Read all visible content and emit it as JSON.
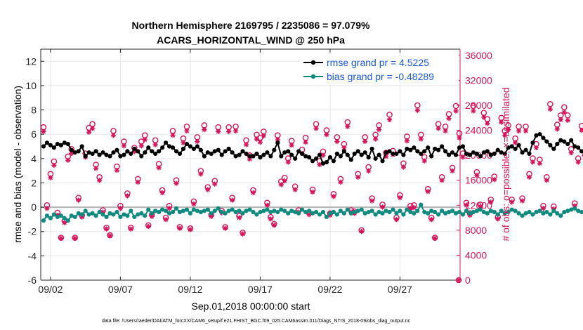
{
  "chart_data": {
    "type": "line",
    "title_line1": "Northern Hemisphere 2169795 / 2235086 = 97.079%",
    "title_line2": "ACARS_HORIZONTAL_WIND @ 250 hPa",
    "xlabel": "Sep.01,2018 00:00:00 start",
    "ylabel_left": "rmse and bias (model - observation)",
    "ylabel_right": "# of obs: o=possible; ×=assimilated",
    "footer": "data file: /Users/raeder/DAI/ATM_forcXX/CAM6_setup/f.e21.FHIST_BGC.f09_025.CAM6assim.011/Diags_NTrS_2018-09/obs_diag_output.nc",
    "xlim": [
      0.8,
      30.8
    ],
    "ylim_left": [
      -6,
      13
    ],
    "ylim_right": [
      0,
      37000
    ],
    "x_ticks": [
      1.5,
      6.5,
      11.5,
      16.5,
      21.5,
      26.5
    ],
    "x_tick_labels": [
      "09/02",
      "09/07",
      "09/12",
      "09/17",
      "09/22",
      "09/27"
    ],
    "y_ticks_left": [
      "-6",
      "-4",
      "-2",
      "0",
      "2",
      "4",
      "6",
      "8",
      "10",
      "12"
    ],
    "y_ticks_right": [
      "0",
      "4000",
      "8000",
      "12000",
      "16000",
      "20000",
      "24000",
      "28000",
      "32000",
      "36000"
    ],
    "y_tick_values_left": [
      -6,
      -4,
      -2,
      0,
      2,
      4,
      6,
      8,
      10,
      12
    ],
    "y_tick_values_right": [
      0,
      4000,
      8000,
      12000,
      16000,
      20000,
      24000,
      28000,
      32000,
      36000
    ],
    "zero_line": 0,
    "x_start": 1.0,
    "x_step": 0.25,
    "series": [
      {
        "name": "rmse grand pr = 4.5225",
        "color": "#000000",
        "axis": "left",
        "values": [
          5.0,
          5.3,
          5.1,
          4.9,
          5.2,
          5.1,
          5.3,
          5.2,
          4.7,
          4.5,
          4.6,
          5.0,
          4.2,
          4.5,
          4.4,
          4.6,
          4.3,
          4.5,
          4.3,
          4.2,
          4.5,
          4.7,
          4.2,
          4.3,
          4.6,
          4.4,
          4.8,
          4.6,
          4.2,
          4.5,
          4.9,
          4.6,
          4.4,
          4.6,
          4.9,
          5.3,
          5.0,
          4.9,
          4.6,
          4.4,
          4.8,
          5.2,
          5.0,
          4.8,
          5.0,
          4.7,
          4.2,
          4.5,
          4.4,
          4.6,
          4.7,
          4.3,
          4.6,
          4.8,
          4.5,
          4.2,
          4.3,
          4.6,
          4.4,
          4.2,
          4.2,
          4.4,
          4.1,
          4.3,
          4.5,
          4.2,
          4.7,
          5.3,
          4.2,
          4.5,
          4.6,
          4.3,
          4.0,
          4.6,
          4.4,
          4.2,
          4.1,
          3.8,
          4.0,
          4.3,
          3.6,
          3.7,
          4.1,
          3.8,
          4.4,
          4.2,
          4.6,
          4.3,
          3.9,
          4.4,
          4.6,
          4.3,
          4.5,
          4.1,
          4.8,
          4.0,
          4.3,
          3.8,
          4.5,
          4.6,
          4.4,
          4.4,
          4.6,
          4.3,
          4.8,
          4.7,
          4.9,
          4.6,
          4.4,
          4.6,
          4.9,
          4.2,
          4.8,
          4.7,
          5.0,
          4.6,
          4.3,
          4.5,
          4.3,
          4.9,
          5.0,
          4.4,
          4.3,
          4.5,
          4.4,
          4.2,
          4.5,
          4.6,
          4.3,
          4.4,
          4.7,
          4.5,
          4.4,
          4.9,
          5.0,
          4.8,
          5.1,
          4.5,
          4.7,
          4.4,
          5.3,
          5.9,
          6.0,
          5.7,
          5.4,
          5.1,
          4.8,
          5.2,
          5.5,
          5.4,
          5.2,
          5.5,
          5.0,
          4.9,
          4.6,
          4.7,
          4.9,
          4.2,
          4.8,
          4.6,
          4.4,
          5.2,
          4.6,
          4.1,
          4.0
        ]
      },
      {
        "name": "bias grand pr = -0.48289",
        "color": "#0f8a7e",
        "axis": "left",
        "values": [
          -1.1,
          -0.7,
          -0.9,
          -0.6,
          -0.8,
          -0.7,
          -0.9,
          -1.1,
          -0.7,
          -0.8,
          -0.5,
          -0.6,
          -0.3,
          -0.6,
          -0.5,
          -0.7,
          -0.4,
          -0.6,
          -0.8,
          -0.5,
          -0.6,
          -0.4,
          -0.8,
          -0.6,
          -0.7,
          -0.3,
          -0.8,
          -0.6,
          -0.5,
          -0.7,
          -0.2,
          -0.5,
          -0.3,
          -0.4,
          -0.2,
          -0.3,
          -0.5,
          -0.4,
          -0.1,
          -0.4,
          -0.3,
          -0.2,
          -0.5,
          -0.2,
          -0.3,
          -0.4,
          -0.3,
          -0.2,
          -0.5,
          -0.3,
          -0.1,
          -0.4,
          -0.5,
          -0.3,
          -0.2,
          -0.4,
          -0.3,
          -0.5,
          -0.3,
          -0.2,
          -0.4,
          -0.6,
          -0.4,
          -0.3,
          -0.2,
          -0.4,
          -0.3,
          -0.4,
          -0.2,
          -0.3,
          -0.5,
          -0.3,
          -0.4,
          -0.5,
          -0.2,
          -0.4,
          -0.3,
          -0.5,
          -0.4,
          -0.6,
          -0.4,
          -0.8,
          -0.5,
          -0.4,
          -0.6,
          -0.3,
          -0.5,
          -0.2,
          -0.5,
          -0.4,
          -0.3,
          -0.2,
          -0.5,
          -0.4,
          -0.3,
          -0.6,
          -0.4,
          -0.5,
          -0.3,
          -0.4,
          -0.2,
          -0.5,
          -0.3,
          -0.6,
          -0.2,
          -0.4,
          -0.5,
          -0.3,
          0.2,
          -0.4,
          -0.5,
          -0.3,
          -0.4,
          -0.6,
          -0.3,
          -0.5,
          -0.4,
          -0.3,
          -0.5,
          -0.4,
          -0.6,
          -0.3,
          -0.5,
          -0.4,
          -0.3,
          -0.2,
          -0.4,
          -0.5,
          -0.3,
          -0.4,
          -0.6,
          -0.3,
          -0.5,
          -0.4,
          -0.2,
          -0.3,
          -0.5,
          -0.7,
          -0.5,
          -0.4,
          -0.6,
          -0.4,
          -0.3,
          -0.5,
          -0.4,
          -0.6,
          -0.3,
          -0.5,
          -0.7,
          -0.4,
          -0.3,
          -0.2,
          -0.1,
          -0.3,
          -0.4,
          -0.3,
          -0.2,
          -0.4,
          -0.3,
          -0.5,
          -0.6,
          -0.4,
          -0.5,
          -0.6,
          -0.5,
          -0.6
        ]
      },
      {
        "name": "possible",
        "color": "#d4145a",
        "axis": "right",
        "marker": "circle",
        "values": [
          24500,
          12000,
          17000,
          19000,
          10800,
          6800,
          9500,
          19800,
          21000,
          6800,
          13200,
          10400,
          20300,
          24400,
          25000,
          18500,
          16500,
          11200,
          8400,
          7200,
          23900,
          18200,
          11900,
          22200,
          13900,
          8400,
          21200,
          16200,
          22200,
          23200,
          8800,
          10500,
          22400,
          18600,
          14400,
          10000,
          11900,
          23900,
          16000,
          8500,
          22700,
          24600,
          8300,
          12600,
          22900,
          17500,
          24800,
          14900,
          10500,
          15900,
          24500,
          11100,
          8500,
          24500,
          13200,
          24600,
          10300,
          7600,
          22400,
          20000,
          14400,
          23300,
          22800,
          23800,
          12400,
          10100,
          9000,
          23200,
          15800,
          16400,
          19500,
          22300,
          15000,
          11200,
          20900,
          22800,
          10800,
          14500,
          25000,
          19100,
          20600,
          24000,
          10700,
          13800,
          22900,
          16200,
          21800,
          25300,
          11200,
          11000,
          17000,
          8000,
          22900,
          18100,
          13100,
          23300,
          24800,
          12100,
          20400,
          26500,
          20700,
          10000,
          13600,
          18700,
          23000,
          11900,
          12000,
          28000,
          23300,
          19700,
          14600,
          10000,
          6800,
          25000,
          16500,
          24600,
          26600,
          18000,
          27900,
          23500,
          20300,
          12400,
          10700,
          27900,
          17300,
          12100,
          26800,
          25800,
          12900,
          16600,
          10100,
          26000,
          23900,
          24800,
          12900,
          22700,
          24600,
          13100,
          24600,
          17000,
          19500,
          21800,
          19300,
          11900,
          16500,
          28200,
          11800,
          24900,
          26400,
          27700,
          26400,
          21000,
          12300,
          19500,
          24700,
          20000,
          10300,
          24400,
          27500,
          7100,
          16100,
          27500,
          26600
        ]
      },
      {
        "name": "assimilated",
        "color": "#d4145a",
        "axis": "right",
        "marker": "asterisk",
        "values": [
          23800,
          11500,
          16400,
          18400,
          10400,
          6700,
          9200,
          19200,
          20300,
          6700,
          12800,
          10100,
          19700,
          23700,
          24300,
          17900,
          16000,
          10900,
          8200,
          7100,
          23200,
          17600,
          11500,
          21500,
          13500,
          8200,
          20600,
          15700,
          21500,
          22500,
          8600,
          10200,
          21700,
          18000,
          14000,
          9700,
          11500,
          23200,
          15500,
          8300,
          22000,
          23900,
          8100,
          12200,
          22200,
          17000,
          24100,
          14500,
          10200,
          15400,
          23800,
          10800,
          8300,
          23800,
          12800,
          23900,
          10000,
          7400,
          21700,
          19400,
          14000,
          22600,
          22100,
          23100,
          12000,
          9800,
          8800,
          22500,
          15300,
          15900,
          18900,
          21600,
          14500,
          10900,
          20300,
          22100,
          10500,
          14100,
          24300,
          18500,
          20000,
          23300,
          10400,
          13400,
          22200,
          15700,
          21200,
          24600,
          10900,
          10700,
          16500,
          7800,
          22200,
          17500,
          12700,
          22600,
          24100,
          11700,
          19800,
          25700,
          20100,
          9700,
          13200,
          18100,
          22300,
          11500,
          11600,
          27200,
          22600,
          19100,
          14200,
          9700,
          6700,
          24300,
          16000,
          23900,
          25900,
          17500,
          27100,
          22800,
          19700,
          12000,
          10400,
          27100,
          16800,
          11800,
          26100,
          25100,
          12500,
          16100,
          9800,
          25300,
          23200,
          24100,
          12500,
          22000,
          23900,
          12700,
          23900,
          16500,
          18900,
          21200,
          18700,
          11500,
          16000,
          27400,
          11400,
          24200,
          25700,
          26900,
          25600,
          20400,
          11900,
          18900,
          24000,
          19400,
          10000,
          23700,
          26800,
          6900,
          15600,
          26800,
          25900
        ]
      }
    ],
    "extra_points": [
      {
        "series": "possible",
        "x": 30.7,
        "y": 0
      },
      {
        "series": "assimilated",
        "x": 30.7,
        "y": 0
      }
    ]
  }
}
